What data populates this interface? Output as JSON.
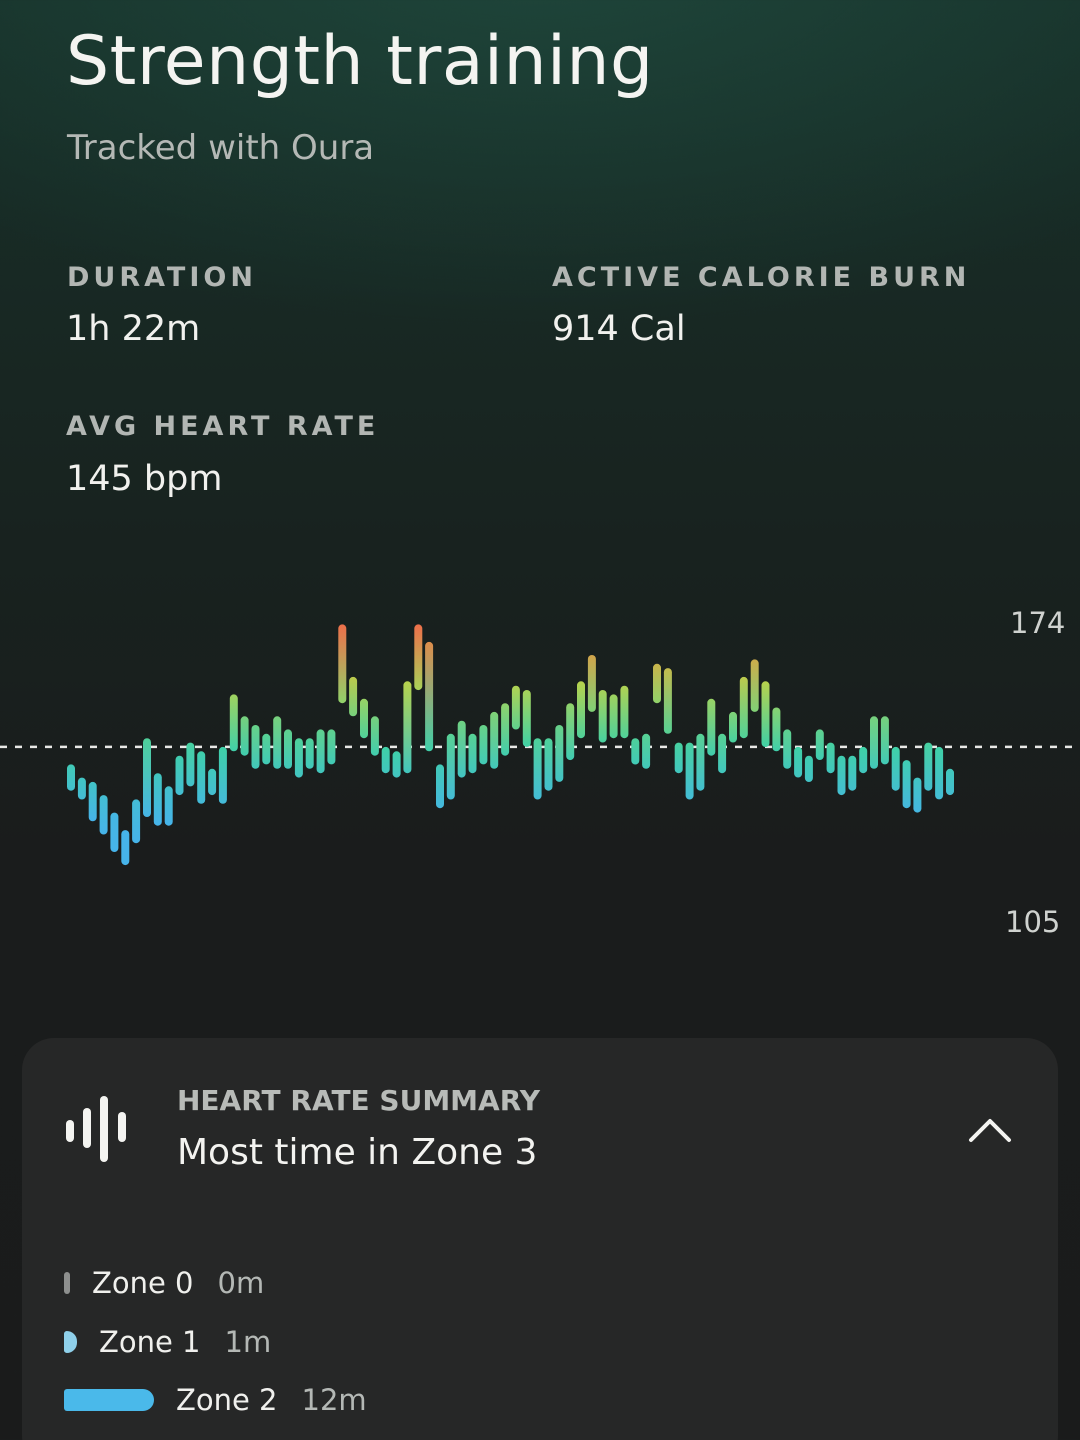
{
  "header": {
    "title": "Strength training",
    "subtitle": "Tracked with Oura"
  },
  "stats": {
    "duration_label": "DURATION",
    "duration_value": "1h 22m",
    "calorie_label": "ACTIVE CALORIE BURN",
    "calorie_value": "914 Cal",
    "avg_hr_label": "AVG HEART RATE",
    "avg_hr_value": "145 bpm"
  },
  "chart_data": {
    "type": "bar",
    "description_units": "bpm",
    "y_max_label": "174",
    "y_min_label": "105",
    "ylim": [
      105,
      174
    ],
    "average_line": 145,
    "bars": [
      [
        135,
        141
      ],
      [
        133,
        138
      ],
      [
        128,
        137
      ],
      [
        125,
        134
      ],
      [
        121,
        130
      ],
      [
        118,
        126
      ],
      [
        123,
        133
      ],
      [
        129,
        147
      ],
      [
        127,
        139
      ],
      [
        127,
        136
      ],
      [
        134,
        143
      ],
      [
        136,
        146
      ],
      [
        132,
        144
      ],
      [
        134,
        140
      ],
      [
        132,
        145
      ],
      [
        144,
        157
      ],
      [
        143,
        152
      ],
      [
        140,
        150
      ],
      [
        141,
        148
      ],
      [
        140,
        152
      ],
      [
        140,
        149
      ],
      [
        138,
        147
      ],
      [
        140,
        147
      ],
      [
        139,
        149
      ],
      [
        141,
        149
      ],
      [
        155,
        173
      ],
      [
        152,
        161
      ],
      [
        147,
        156
      ],
      [
        143,
        152
      ],
      [
        139,
        145
      ],
      [
        138,
        144
      ],
      [
        139,
        160
      ],
      [
        158,
        173
      ],
      [
        144,
        169
      ],
      [
        131,
        141
      ],
      [
        133,
        148
      ],
      [
        138,
        151
      ],
      [
        139,
        148
      ],
      [
        141,
        150
      ],
      [
        140,
        153
      ],
      [
        143,
        155
      ],
      [
        149,
        159
      ],
      [
        145,
        158
      ],
      [
        133,
        147
      ],
      [
        135,
        147
      ],
      [
        137,
        150
      ],
      [
        142,
        155
      ],
      [
        147,
        160
      ],
      [
        153,
        166
      ],
      [
        146,
        158
      ],
      [
        147,
        157
      ],
      [
        147,
        159
      ],
      [
        141,
        147
      ],
      [
        140,
        148
      ],
      [
        155,
        164
      ],
      [
        148,
        163
      ],
      [
        139,
        146
      ],
      [
        133,
        146
      ],
      [
        135,
        148
      ],
      [
        143,
        156
      ],
      [
        139,
        148
      ],
      [
        146,
        153
      ],
      [
        147,
        161
      ],
      [
        153,
        165
      ],
      [
        145,
        160
      ],
      [
        144,
        154
      ],
      [
        140,
        149
      ],
      [
        138,
        145
      ],
      [
        137,
        143
      ],
      [
        142,
        149
      ],
      [
        139,
        146
      ],
      [
        134,
        143
      ],
      [
        135,
        143
      ],
      [
        139,
        145
      ],
      [
        140,
        152
      ],
      [
        141,
        152
      ],
      [
        135,
        145
      ],
      [
        131,
        142
      ],
      [
        130,
        138
      ],
      [
        135,
        146
      ],
      [
        133,
        145
      ],
      [
        134,
        140
      ]
    ]
  },
  "summary": {
    "label": "HEART RATE SUMMARY",
    "value": "Most time in Zone 3",
    "zones": [
      {
        "name": "Zone 0",
        "time": "0m",
        "minutes": 0,
        "color": "#8d8f8e"
      },
      {
        "name": "Zone 1",
        "time": "1m",
        "minutes": 1,
        "color": "#8fd0ea"
      },
      {
        "name": "Zone 2",
        "time": "12m",
        "minutes": 12,
        "color": "#4ab9ea"
      }
    ]
  },
  "colors": {
    "low": "#46b3ea",
    "mid": "#3fd1a6",
    "high": "#b8d24c",
    "peak": "#ee6f4a"
  }
}
